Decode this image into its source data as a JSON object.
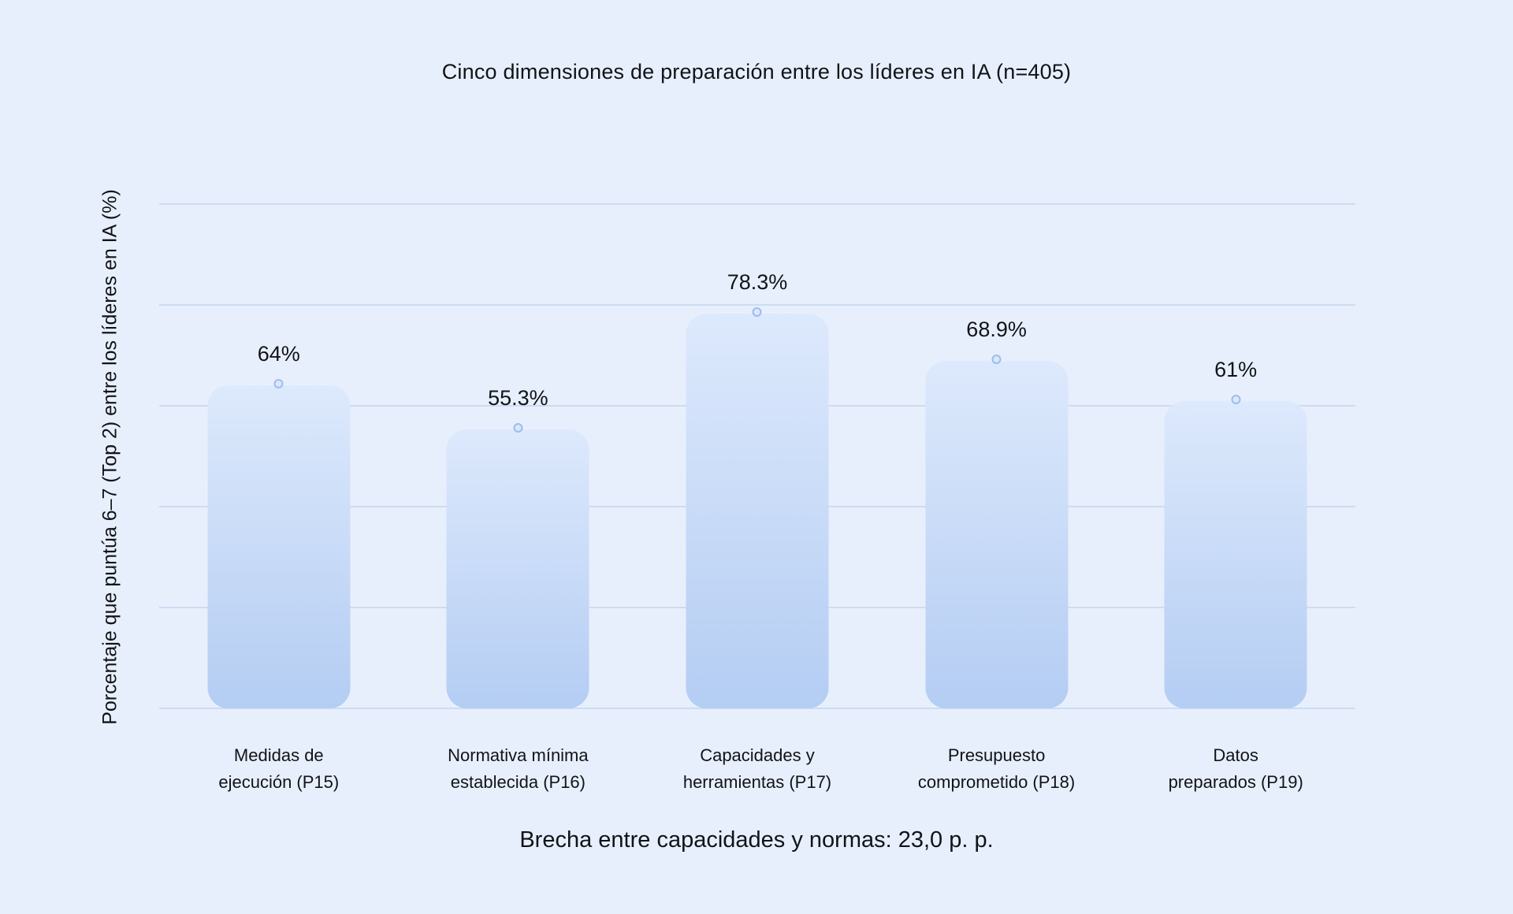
{
  "page": {
    "title": "Cinco dimensiones de preparación entre los líderes en IA (n=405)",
    "y_axis_label": "Porcentaje que puntúa 6–7 (Top 2) entre los líderes en IA (%)",
    "footer_note": "Brecha entre capacidades y normas: 23,0 p. p."
  },
  "colors": {
    "background": "#e8effc",
    "text": "#101418",
    "gridline": "#ccdcf2",
    "bar_gradient_top": "#dde9fc",
    "bar_gradient_bottom": "#b4cdf3",
    "marker_fill": "#dbe7fa",
    "marker_border": "#9cbcee"
  },
  "chart_data": {
    "type": "bar",
    "title": "Cinco dimensiones de preparación entre los líderes en IA (n=405)",
    "ylabel": "Porcentaje que puntúa 6–7 (Top 2) entre los líderes en IA (%)",
    "xlabel": "",
    "categories": [
      "Medidas de ejecución (P15)",
      "Normativa mínima establecida (P16)",
      "Capacidades y herramientas (P17)",
      "Presupuesto comprometido (P18)",
      "Datos preparados (P19)"
    ],
    "category_lines": [
      [
        "Medidas de",
        "ejecución (P15)"
      ],
      [
        "Normativa mínima",
        "establecida (P16)"
      ],
      [
        "Capacidades y",
        "herramientas (P17)"
      ],
      [
        "Presupuesto",
        "comprometido (P18)"
      ],
      [
        "Datos",
        "preparados (P19)"
      ]
    ],
    "values": [
      64,
      55.3,
      78.3,
      68.9,
      61
    ],
    "value_labels": [
      "64%",
      "55.3%",
      "78.3%",
      "68.9%",
      "61%"
    ],
    "ylim": [
      0,
      100
    ],
    "grid": true,
    "grid_step": 20,
    "legend_position": "none",
    "annotation": "Brecha entre capacidades y normas: 23,0 p. p."
  }
}
